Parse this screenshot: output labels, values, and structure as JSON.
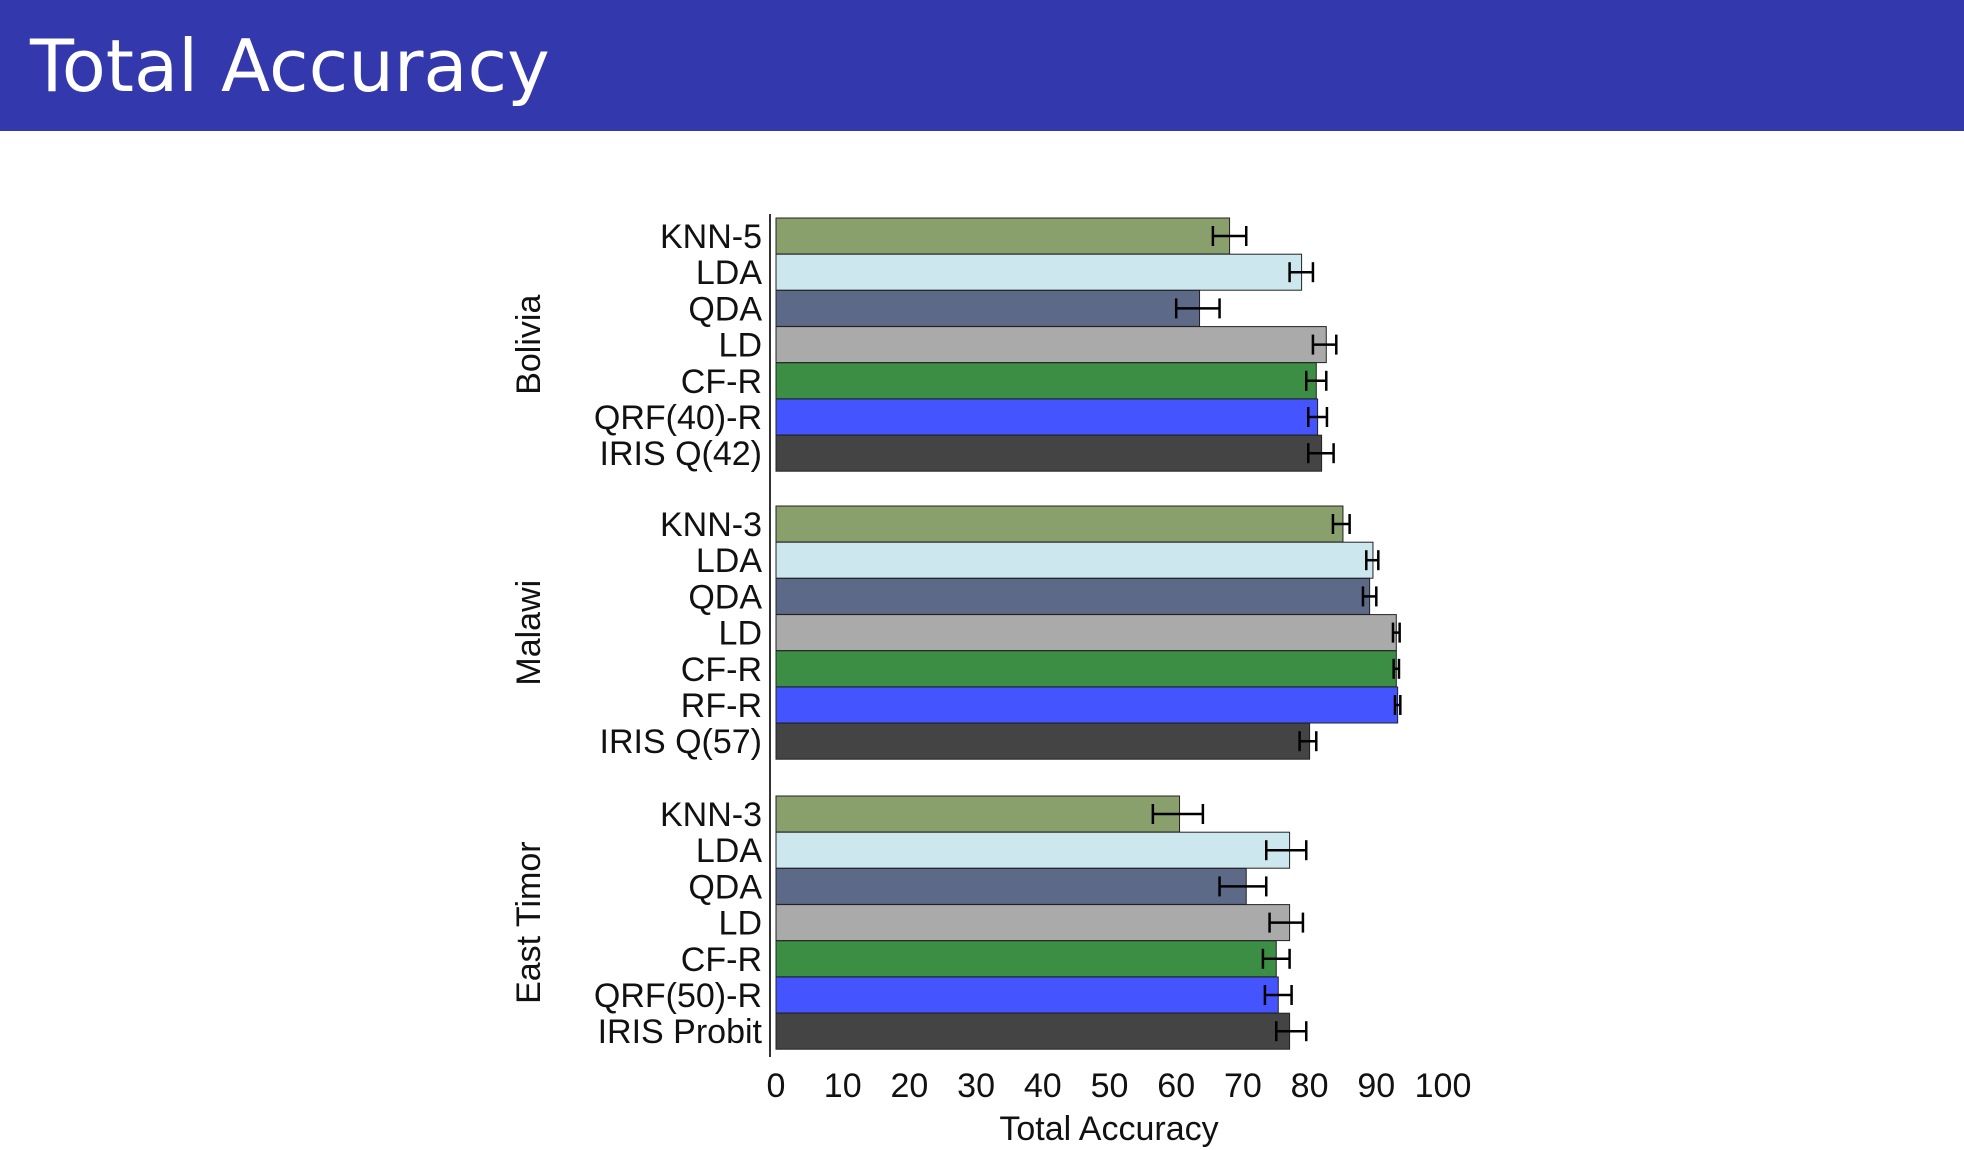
{
  "slide": {
    "title": "Total Accuracy"
  },
  "chart_data": {
    "type": "bar",
    "orientation": "horizontal",
    "title": "",
    "xlabel": "Total Accuracy",
    "ylabel": "",
    "xlim": [
      0,
      100
    ],
    "xticks": [
      0,
      10,
      20,
      30,
      40,
      50,
      60,
      70,
      80,
      90,
      100
    ],
    "grid": false,
    "groups": [
      {
        "name": "Bolivia",
        "bars": [
          {
            "label": "KNN-5",
            "value": 68.0,
            "err_low": 65.5,
            "err_high": 70.5,
            "color": "#8aa06c"
          },
          {
            "label": "LDA",
            "value": 78.8,
            "err_low": 77.0,
            "err_high": 80.5,
            "color": "#cce8ee"
          },
          {
            "label": "QDA",
            "value": 63.5,
            "err_low": 60.0,
            "err_high": 66.5,
            "color": "#5c6a88"
          },
          {
            "label": "LD",
            "value": 82.5,
            "err_low": 80.5,
            "err_high": 84.0,
            "color": "#aaaaaa"
          },
          {
            "label": "CF-R",
            "value": 81.0,
            "err_low": 79.5,
            "err_high": 82.5,
            "color": "#3c8e44"
          },
          {
            "label": "QRF(40)-R",
            "value": 81.2,
            "err_low": 79.8,
            "err_high": 82.6,
            "color": "#4455ff"
          },
          {
            "label": "IRIS Q(42)",
            "value": 81.8,
            "err_low": 79.8,
            "err_high": 83.6,
            "color": "#444444"
          }
        ]
      },
      {
        "name": "Malawi",
        "bars": [
          {
            "label": "KNN-3",
            "value": 85.0,
            "err_low": 83.5,
            "err_high": 86.0,
            "color": "#8aa06c"
          },
          {
            "label": "LDA",
            "value": 89.5,
            "err_low": 88.5,
            "err_high": 90.3,
            "color": "#cce8ee"
          },
          {
            "label": "QDA",
            "value": 89.0,
            "err_low": 88.0,
            "err_high": 90.0,
            "color": "#5c6a88"
          },
          {
            "label": "LD",
            "value": 93.0,
            "err_low": 92.5,
            "err_high": 93.5,
            "color": "#aaaaaa"
          },
          {
            "label": "CF-R",
            "value": 93.0,
            "err_low": 92.6,
            "err_high": 93.4,
            "color": "#3c8e44"
          },
          {
            "label": "RF-R",
            "value": 93.2,
            "err_low": 92.8,
            "err_high": 93.6,
            "color": "#4455ff"
          },
          {
            "label": "IRIS Q(57)",
            "value": 80.0,
            "err_low": 78.5,
            "err_high": 81.0,
            "color": "#444444"
          }
        ]
      },
      {
        "name": "East Timor",
        "bars": [
          {
            "label": "KNN-3",
            "value": 60.5,
            "err_low": 56.5,
            "err_high": 64.0,
            "color": "#8aa06c"
          },
          {
            "label": "LDA",
            "value": 77.0,
            "err_low": 73.5,
            "err_high": 79.5,
            "color": "#cce8ee"
          },
          {
            "label": "QDA",
            "value": 70.5,
            "err_low": 66.5,
            "err_high": 73.5,
            "color": "#5c6a88"
          },
          {
            "label": "LD",
            "value": 77.0,
            "err_low": 74.0,
            "err_high": 79.0,
            "color": "#aaaaaa"
          },
          {
            "label": "CF-R",
            "value": 75.0,
            "err_low": 73.0,
            "err_high": 77.0,
            "color": "#3c8e44"
          },
          {
            "label": "QRF(50)-R",
            "value": 75.3,
            "err_low": 73.3,
            "err_high": 77.3,
            "color": "#4455ff"
          },
          {
            "label": "IRIS Probit",
            "value": 77.0,
            "err_low": 75.0,
            "err_high": 79.5,
            "color": "#444444"
          }
        ]
      }
    ]
  }
}
